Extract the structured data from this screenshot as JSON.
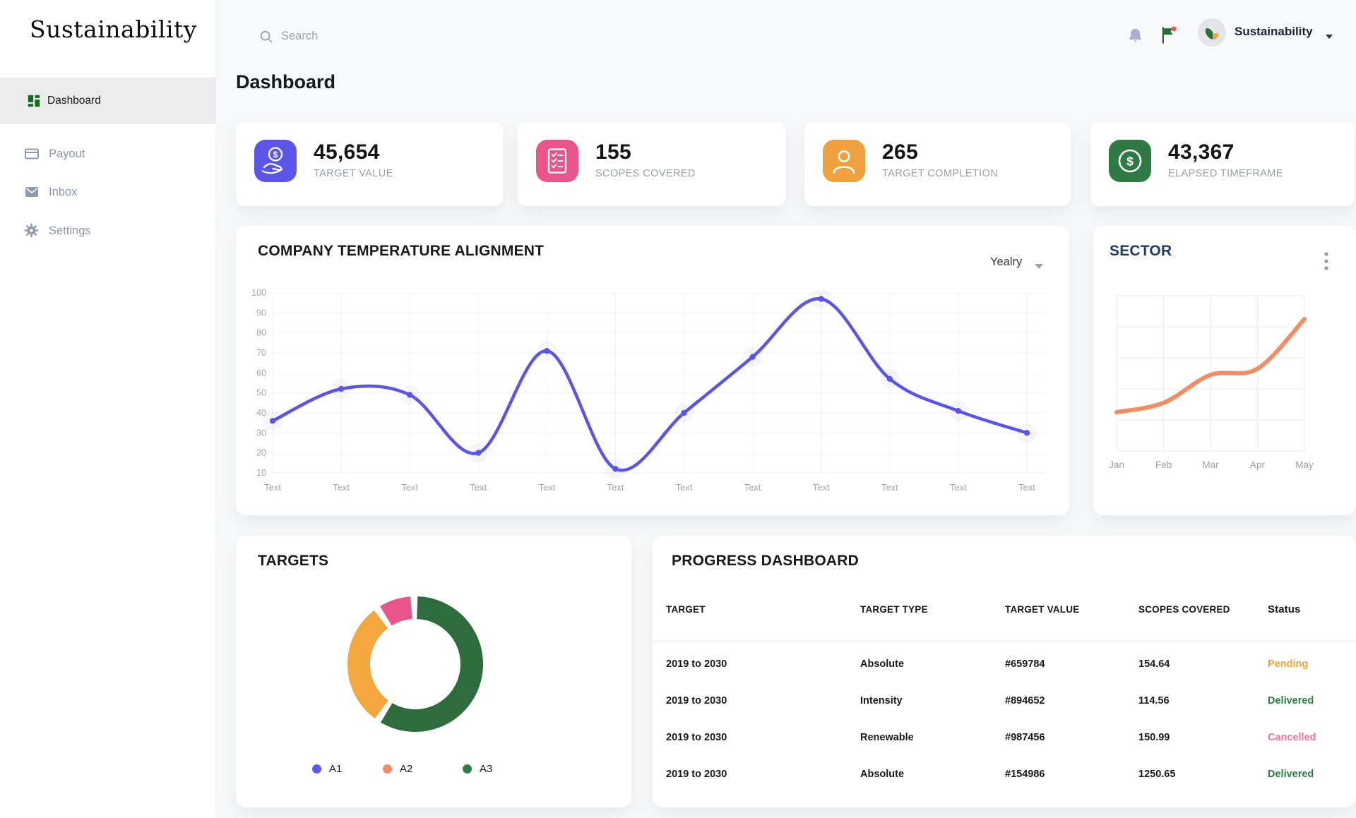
{
  "sidebar": {
    "logo": "Sustainability",
    "items": [
      {
        "label": "Dashboard",
        "icon": "dashboard-grid-icon",
        "active": true
      },
      {
        "label": "Payout",
        "icon": "payout-card-icon",
        "active": false
      },
      {
        "label": "Inbox",
        "icon": "inbox-mail-icon",
        "active": false
      },
      {
        "label": "Settings",
        "icon": "settings-gear-icon",
        "active": false
      }
    ]
  },
  "topbar": {
    "search_placeholder": "Search",
    "icons": [
      "bell-icon",
      "flag-icon"
    ],
    "user_name": "Sustainability"
  },
  "page": {
    "title": "Dashboard"
  },
  "stats": [
    {
      "value": "45,654",
      "label": "TARGET VALUE",
      "icon": "hand-coin-icon",
      "color": "#5b54e8"
    },
    {
      "value": "155",
      "label": "SCOPES COVERED",
      "icon": "checklist-icon",
      "color": "#e9558a"
    },
    {
      "value": "265",
      "label": "TARGET COMPLETION",
      "icon": "person-icon",
      "color": "#f0a13f"
    },
    {
      "value": "43,367",
      "label": "ELAPSED TIMEFRAME",
      "icon": "dollar-coin-icon",
      "color": "#2f7a44"
    }
  ],
  "temperature_card": {
    "title": "COMPANY TEMPERATURE ALIGNMENT",
    "period": "Yealry"
  },
  "sector_card": {
    "title": "SECTOR"
  },
  "targets_card": {
    "title": "TARGETS",
    "legend": [
      {
        "label": "A1",
        "color": "#5b5bf0"
      },
      {
        "label": "A2",
        "color": "#f58b60"
      },
      {
        "label": "A3",
        "color": "#2e7d44"
      }
    ]
  },
  "progress_card": {
    "title": "PROGRESS DASHBOARD",
    "columns": [
      "TARGET",
      "TARGET TYPE",
      "TARGET VALUE",
      "SCOPES COVERED",
      "Status"
    ],
    "rows": [
      {
        "target": "2019 to 2030",
        "type": "Absolute",
        "value": "#659784",
        "scopes": "154.64",
        "status": "Pending",
        "status_color": "#f0a13f"
      },
      {
        "target": "2019 to 2030",
        "type": "Intensity",
        "value": "#894652",
        "scopes": "114.56",
        "status": "Delivered",
        "status_color": "#2e7d44"
      },
      {
        "target": "2019 to 2030",
        "type": "Renewable",
        "value": "#987456",
        "scopes": "150.99",
        "status": "Cancelled",
        "status_color": "#f2729c"
      },
      {
        "target": "2019 to 2030",
        "type": "Absolute",
        "value": "#154986",
        "scopes": "1250.65",
        "status": "Delivered",
        "status_color": "#2e7d44"
      }
    ]
  },
  "chart_data": [
    {
      "id": "temperature",
      "type": "line",
      "title": "COMPANY TEMPERATURE ALIGNMENT",
      "x": [
        "Text",
        "Text",
        "Text",
        "Text",
        "Text",
        "Text",
        "Text",
        "Text",
        "Text",
        "Text",
        "Text",
        "Text"
      ],
      "series": [
        {
          "name": "Company temperature alignment",
          "color": "#5a54e8",
          "values": [
            36,
            52,
            49,
            20,
            71,
            12,
            40,
            68,
            97,
            57,
            41,
            30
          ]
        }
      ],
      "ylim": [
        10,
        100
      ],
      "yticks": [
        10,
        20,
        30,
        40,
        50,
        60,
        70,
        80,
        90,
        100
      ],
      "grid": true,
      "legend": "none"
    },
    {
      "id": "sector",
      "type": "line",
      "title": "SECTOR",
      "x": [
        "Jan",
        "Feb",
        "Mar",
        "Apr",
        "May"
      ],
      "series": [
        {
          "name": "Sector",
          "color": "#f58b60",
          "values": [
            25,
            31,
            49,
            53,
            85
          ]
        }
      ],
      "ylim": [
        0,
        100
      ],
      "grid": true,
      "legend": "none"
    },
    {
      "id": "targets",
      "type": "pie",
      "title": "TARGETS",
      "slices": [
        {
          "color": "#2e6b3d",
          "value": 61
        },
        {
          "color": "#f3a73e",
          "value": 31
        },
        {
          "color": "#e9558a",
          "value": 8
        }
      ],
      "legend_entries": [
        "A1",
        "A2",
        "A3"
      ],
      "legend_position": "bottom"
    }
  ]
}
